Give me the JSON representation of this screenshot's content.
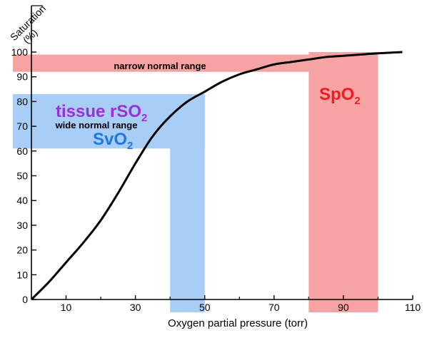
{
  "chart_data": {
    "type": "line",
    "title": "",
    "ylabel": "Saturation (%)",
    "ylabel_lines": [
      "Saturation",
      "(%)"
    ],
    "xlabel": "Oxygen partial pressure (torr)",
    "xlim": [
      0,
      110
    ],
    "ylim": [
      0,
      100
    ],
    "grid": false,
    "x_ticks": [
      10,
      30,
      50,
      70,
      90,
      110
    ],
    "y_ticks": [
      0,
      10,
      20,
      30,
      40,
      50,
      60,
      70,
      80,
      90,
      100
    ],
    "series": [
      {
        "color": "#000000",
        "x": [
          0,
          5,
          10,
          15,
          20,
          25,
          30,
          35,
          40,
          45,
          50,
          55,
          60,
          65,
          70,
          75,
          80,
          85,
          90,
          95,
          100,
          107
        ],
        "y": [
          0,
          7,
          15,
          23,
          32,
          43,
          55,
          66,
          74,
          80,
          84,
          88,
          91,
          93,
          95,
          96,
          97,
          98,
          98.5,
          99,
          99.5,
          100
        ]
      }
    ],
    "bands": [
      {
        "id": "spo2",
        "color": "#f7a3a3",
        "x_range": [
          80,
          100
        ],
        "y_range": [
          0,
          100
        ],
        "horizontal_y_range": [
          92,
          99
        ],
        "horizontal_x_range": [
          0,
          100
        ],
        "label_text": "SpO",
        "label_sub": "2",
        "label_color": "#ee1c24"
      },
      {
        "id": "svo2",
        "color": "#a8cdf7",
        "x_range": [
          40,
          50
        ],
        "y_range": [
          0,
          83
        ],
        "horizontal_y_range": [
          61,
          83
        ],
        "horizontal_x_range": [
          0,
          50
        ],
        "label_text": "SvO",
        "label_sub": "2",
        "label_color": "#1f77e0"
      }
    ],
    "annotations": {
      "narrow": "narrow normal range",
      "wide": "wide normal range",
      "tissue_text": "tissue rSO",
      "tissue_sub": "2",
      "tissue_color": "#9b30d9"
    }
  }
}
